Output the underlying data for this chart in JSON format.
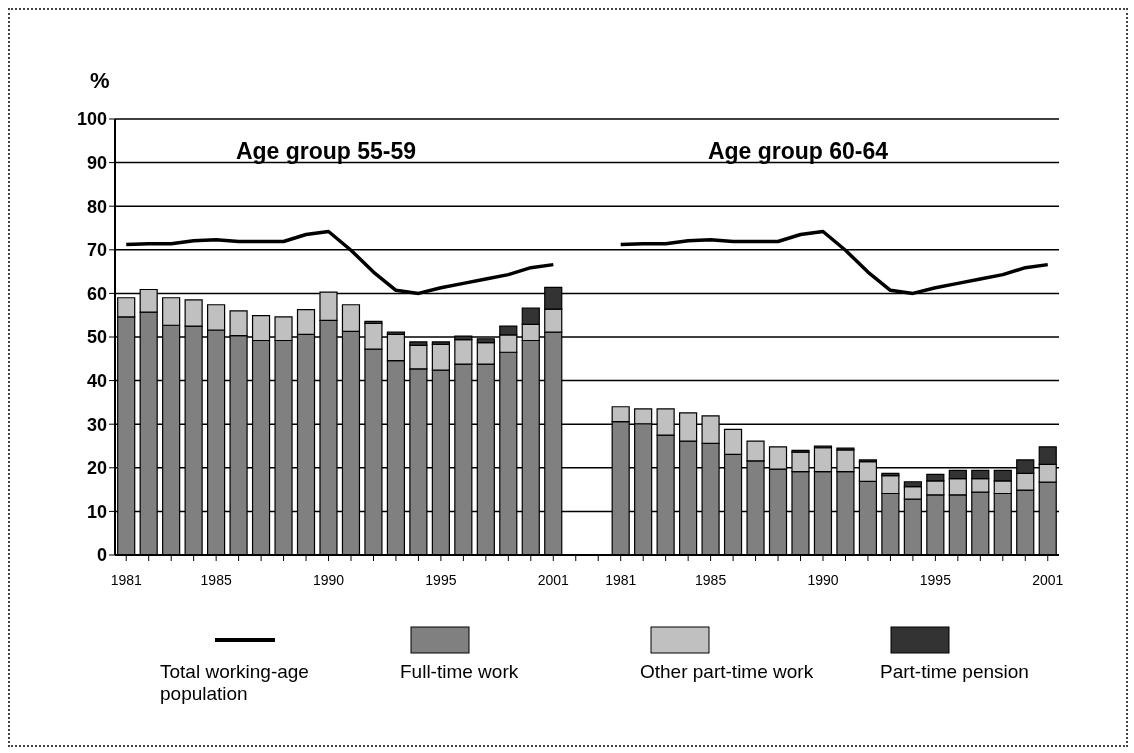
{
  "chart_data": {
    "type": "bar",
    "ylabel": "%",
    "stacked": true,
    "grid": "y",
    "legend": "bottom",
    "marker": "none",
    "line_style": "solid",
    "annotations": [
      "Age group 55-59",
      "Age group 60-64"
    ],
    "categories": [
      "1981",
      null,
      null,
      null,
      "1985",
      null,
      null,
      null,
      null,
      "1990",
      null,
      null,
      null,
      null,
      "1995",
      null,
      null,
      null,
      null,
      "2001",
      null,
      null,
      "1981",
      null,
      null,
      null,
      "1985",
      null,
      null,
      null,
      null,
      "1990",
      null,
      null,
      null,
      null,
      "1995",
      null,
      null,
      null,
      null,
      "2001"
    ],
    "ylim": [
      0,
      100
    ],
    "yticks": [
      0,
      10,
      20,
      30,
      40,
      50,
      60,
      70,
      80,
      90,
      100
    ],
    "series": [
      {
        "name": "Total working-age population",
        "type": "line",
        "color": "#000000",
        "values": [
          71.2,
          71.4,
          71.4,
          72.1,
          72.3,
          71.9,
          71.9,
          71.9,
          73.5,
          74.2,
          69.9,
          64.9,
          60.7,
          60.0,
          61.3,
          62.3,
          63.3,
          64.3,
          65.9,
          66.6,
          null,
          null,
          71.2,
          71.4,
          71.4,
          72.1,
          72.3,
          71.9,
          71.9,
          71.9,
          73.5,
          74.2,
          69.9,
          64.9,
          60.7,
          60.0,
          61.3,
          62.3,
          63.3,
          64.3,
          65.9,
          66.6
        ]
      },
      {
        "name": "Full-time work",
        "color": "#808080",
        "values": [
          54.6,
          55.7,
          52.7,
          52.5,
          51.6,
          50.3,
          49.2,
          49.2,
          50.6,
          53.8,
          51.3,
          47.2,
          44.6,
          42.7,
          42.4,
          43.8,
          43.8,
          46.5,
          49.2,
          51.1,
          null,
          null,
          30.6,
          30.1,
          27.5,
          26.1,
          25.6,
          23.1,
          21.6,
          19.7,
          19.1,
          19.1,
          19.1,
          16.9,
          14.1,
          12.8,
          13.8,
          13.8,
          14.4,
          14.1,
          14.9,
          16.7
        ]
      },
      {
        "name": "Other part-time work",
        "color": "#c0c0c0",
        "values": [
          4.4,
          5.2,
          6.3,
          6.0,
          5.8,
          5.7,
          5.7,
          5.4,
          5.7,
          6.5,
          6.1,
          5.9,
          6.0,
          5.4,
          5.9,
          5.6,
          4.9,
          4.0,
          3.7,
          5.3,
          null,
          null,
          3.4,
          3.4,
          6.0,
          6.5,
          6.3,
          5.7,
          4.5,
          5.1,
          4.5,
          5.5,
          5.0,
          4.5,
          4.1,
          2.9,
          3.2,
          3.7,
          3.1,
          2.9,
          3.8,
          4.1
        ]
      },
      {
        "name": "Part-time pension",
        "color": "#333333",
        "values": [
          0,
          0,
          0,
          0,
          0,
          0,
          0,
          0,
          0,
          0,
          0,
          0.5,
          0.5,
          0.8,
          0.6,
          0.8,
          0.9,
          2.0,
          3.7,
          5.0,
          null,
          null,
          0,
          0,
          0,
          0,
          0,
          0,
          0,
          0,
          0.4,
          0.4,
          0.4,
          0.4,
          0.5,
          1.1,
          1.5,
          1.9,
          1.9,
          2.4,
          3.1,
          4.0
        ]
      }
    ]
  }
}
